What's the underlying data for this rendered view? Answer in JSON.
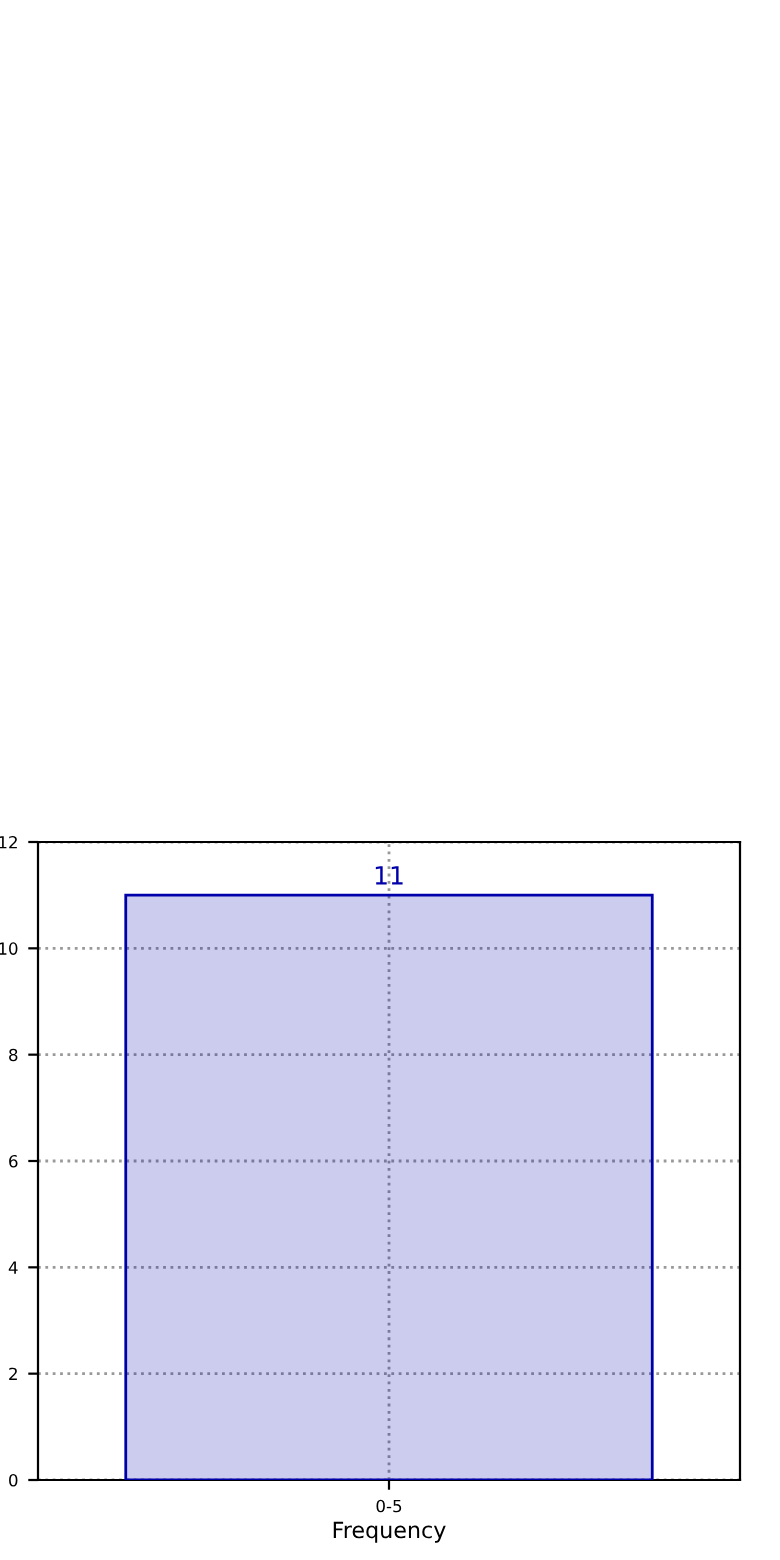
{
  "chart_data": {
    "type": "bar",
    "xlabel": "Frequency",
    "categories": [
      "0-5"
    ],
    "series": [
      {
        "color": "#0000aa",
        "values": [
          11
        ]
      }
    ],
    "ylim": [
      0,
      12
    ],
    "yticks": [
      0,
      2,
      4,
      6,
      8,
      10,
      12
    ],
    "grid": true,
    "data_labels": true
  }
}
